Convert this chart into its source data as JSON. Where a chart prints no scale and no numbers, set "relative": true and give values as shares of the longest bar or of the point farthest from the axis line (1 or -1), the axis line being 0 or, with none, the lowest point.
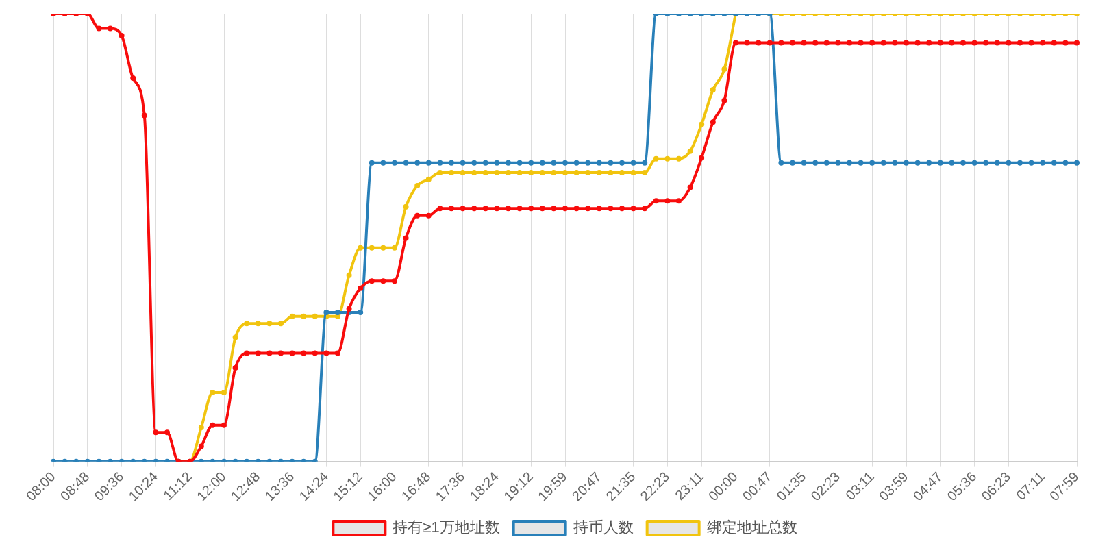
{
  "chart_data": {
    "type": "line",
    "relative": true,
    "grid": "x",
    "legend": "bottom",
    "marker": "circle",
    "line_style": "solid",
    "categories": [
      "08:00",
      null,
      null,
      "08:48",
      null,
      null,
      "09:36",
      null,
      null,
      "10:24",
      null,
      null,
      "11:12",
      null,
      null,
      "12:00",
      null,
      null,
      "12:48",
      null,
      null,
      "13:36",
      null,
      null,
      "14:24",
      null,
      null,
      "15:12",
      null,
      null,
      "16:00",
      null,
      null,
      "16:48",
      null,
      null,
      "17:36",
      null,
      null,
      "18:24",
      null,
      null,
      "19:12",
      null,
      null,
      "19:59",
      null,
      null,
      "20:47",
      null,
      null,
      "21:35",
      null,
      null,
      "22:23",
      null,
      null,
      "23:11",
      null,
      null,
      "00:00",
      null,
      null,
      "00:47",
      null,
      null,
      "01:35",
      null,
      null,
      "02:23",
      null,
      null,
      "03:11",
      null,
      null,
      "03:59",
      null,
      null,
      "04:47",
      null,
      null,
      "05:36",
      null,
      null,
      "06:23",
      null,
      null,
      "07:11",
      null,
      null,
      "07:59"
    ],
    "series": [
      {
        "name": "持有≥1万地址数",
        "color": "#f80c0c",
        "values": [
          1,
          1,
          1,
          1,
          0.967,
          0.967,
          0.951,
          0.856,
          0.773,
          0.065,
          0.065,
          0,
          0,
          0.034,
          0.081,
          0.081,
          0.209,
          0.242,
          0.242,
          0.242,
          0.242,
          0.242,
          0.242,
          0.242,
          0.242,
          0.242,
          0.341,
          0.387,
          0.403,
          0.403,
          0.403,
          0.499,
          0.549,
          0.549,
          0.565,
          0.565,
          0.565,
          0.565,
          0.565,
          0.565,
          0.565,
          0.565,
          0.565,
          0.565,
          0.565,
          0.565,
          0.565,
          0.565,
          0.565,
          0.565,
          0.565,
          0.565,
          0.565,
          0.582,
          0.582,
          0.582,
          0.612,
          0.678,
          0.758,
          0.806,
          0.935,
          0.935,
          0.935,
          0.935,
          0.935,
          0.935,
          0.935,
          0.935,
          0.935,
          0.935,
          0.935,
          0.935,
          0.935,
          0.935,
          0.935,
          0.935,
          0.935,
          0.935,
          0.935,
          0.935,
          0.935,
          0.935,
          0.935,
          0.935,
          0.935,
          0.935,
          0.935,
          0.935,
          0.935,
          0.935,
          0.935
        ]
      },
      {
        "name": "持币人数",
        "color": "#2980b9",
        "values": [
          0,
          0,
          0,
          0,
          0,
          0,
          0,
          0,
          0,
          0,
          0,
          0,
          0,
          0,
          0,
          0,
          0,
          0,
          0,
          0,
          0,
          0,
          0,
          0,
          0.333,
          0.333,
          0.333,
          0.333,
          0.667,
          0.667,
          0.667,
          0.667,
          0.667,
          0.667,
          0.667,
          0.667,
          0.667,
          0.667,
          0.667,
          0.667,
          0.667,
          0.667,
          0.667,
          0.667,
          0.667,
          0.667,
          0.667,
          0.667,
          0.667,
          0.667,
          0.667,
          0.667,
          0.667,
          1,
          1,
          1,
          1,
          1,
          1,
          1,
          1,
          1,
          1,
          1,
          0.667,
          0.667,
          0.667,
          0.667,
          0.667,
          0.667,
          0.667,
          0.667,
          0.667,
          0.667,
          0.667,
          0.667,
          0.667,
          0.667,
          0.667,
          0.667,
          0.667,
          0.667,
          0.667,
          0.667,
          0.667,
          0.667,
          0.667,
          0.667,
          0.667,
          0.667,
          0.667
        ]
      },
      {
        "name": "绑定地址总数",
        "color": "#f1c40f",
        "values": [
          null,
          null,
          null,
          null,
          null,
          null,
          null,
          null,
          null,
          null,
          null,
          0,
          0,
          0.076,
          0.154,
          0.154,
          0.277,
          0.308,
          0.308,
          0.308,
          0.308,
          0.324,
          0.324,
          0.324,
          0.324,
          0.324,
          0.416,
          0.477,
          0.477,
          0.477,
          0.477,
          0.569,
          0.616,
          0.63,
          0.645,
          0.645,
          0.645,
          0.645,
          0.645,
          0.645,
          0.645,
          0.645,
          0.645,
          0.645,
          0.645,
          0.645,
          0.645,
          0.645,
          0.645,
          0.645,
          0.645,
          0.645,
          0.645,
          0.676,
          0.676,
          0.676,
          0.693,
          0.753,
          0.83,
          0.876,
          1,
          null,
          null,
          1,
          1,
          1,
          1,
          1,
          1,
          1,
          1,
          1,
          1,
          1,
          1,
          1,
          1,
          1,
          1,
          1,
          1,
          1,
          1,
          1,
          1,
          1,
          1,
          1,
          1,
          1,
          1
        ]
      }
    ]
  }
}
